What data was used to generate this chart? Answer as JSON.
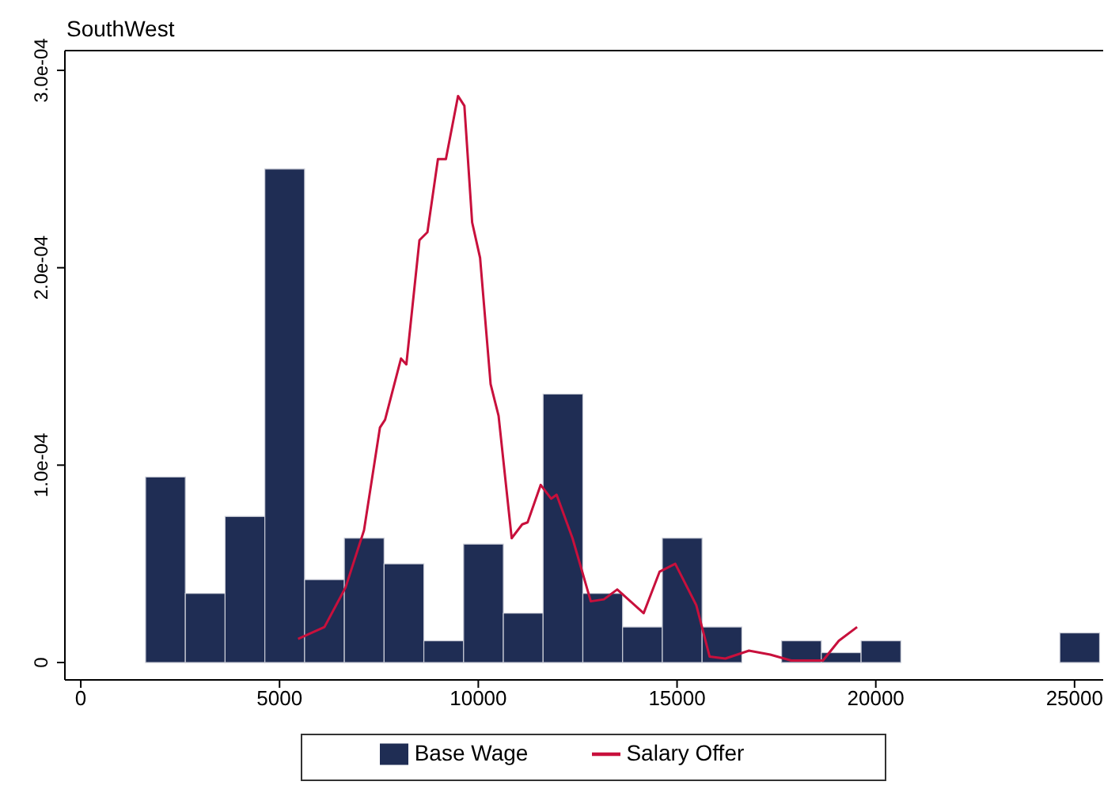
{
  "chart_data": {
    "type": "histogram",
    "title": "SouthWest",
    "series": [
      {
        "name": "Base Wage",
        "color": "#1f2d54",
        "bins": [
          1630,
          2630,
          3630,
          4630,
          5630,
          6630,
          7630,
          8630,
          9630,
          10630,
          11630,
          12630,
          13630,
          14630,
          15630,
          16630,
          17630,
          18630,
          19630,
          20630,
          21630,
          22630,
          23630,
          24630,
          25630
        ],
        "values": [
          9.4e-05,
          3.5e-05,
          7.4e-05,
          0.00025,
          4.2e-05,
          6.3e-05,
          5e-05,
          1.1e-05,
          6e-05,
          2.5e-05,
          0.000136,
          3.5e-05,
          1.8e-05,
          6.3e-05,
          1.8e-05,
          0,
          1.1e-05,
          5e-06,
          1.1e-05,
          0,
          0,
          0,
          0,
          1.5e-05
        ]
      },
      {
        "name": "Salary Offer",
        "type": "line",
        "color": "#c8103c",
        "x": [
          5466,
          6130,
          6660,
          7125,
          7525,
          7655,
          8055,
          8190,
          8520,
          8720,
          8985,
          9185,
          9490,
          9650,
          9845,
          10045,
          10310,
          10510,
          10840,
          11105,
          11240,
          11570,
          11835,
          11970,
          12370,
          12830,
          13160,
          13495,
          14160,
          14560,
          14955,
          15485,
          15820,
          16215,
          16810,
          17345,
          17870,
          18670,
          19070,
          19530
        ],
        "values": [
          1.2e-05,
          1.8e-05,
          3.8e-05,
          6.7e-05,
          0.000119,
          0.000123,
          0.000154,
          0.000151,
          0.000214,
          0.000218,
          0.000255,
          0.000255,
          0.000287,
          0.000282,
          0.000223,
          0.000205,
          0.000141,
          0.000125,
          6.3e-05,
          7e-05,
          7.1e-05,
          9e-05,
          8.3e-05,
          8.5e-05,
          6.3e-05,
          3.1e-05,
          3.2e-05,
          3.7e-05,
          2.5e-05,
          4.6e-05,
          5e-05,
          2.9e-05,
          3e-06,
          2e-06,
          6e-06,
          4e-06,
          1e-06,
          1e-06,
          1.1e-05,
          1.8e-05
        ]
      }
    ],
    "xlim": [
      -400,
      25720
    ],
    "xticks": [
      0,
      5000,
      10000,
      15000,
      20000,
      25000
    ],
    "ylim": [
      -8.8e-06,
      0.00031
    ],
    "yticks": [
      {
        "value": 0,
        "label": "0"
      },
      {
        "value": 0.0001,
        "label": "1.0e-04"
      },
      {
        "value": 0.0002,
        "label": "2.0e-04"
      },
      {
        "value": 0.0003,
        "label": "3.0e-04"
      }
    ],
    "grid": false,
    "legend": "bottom",
    "marker": "none",
    "line_style": "solid"
  }
}
